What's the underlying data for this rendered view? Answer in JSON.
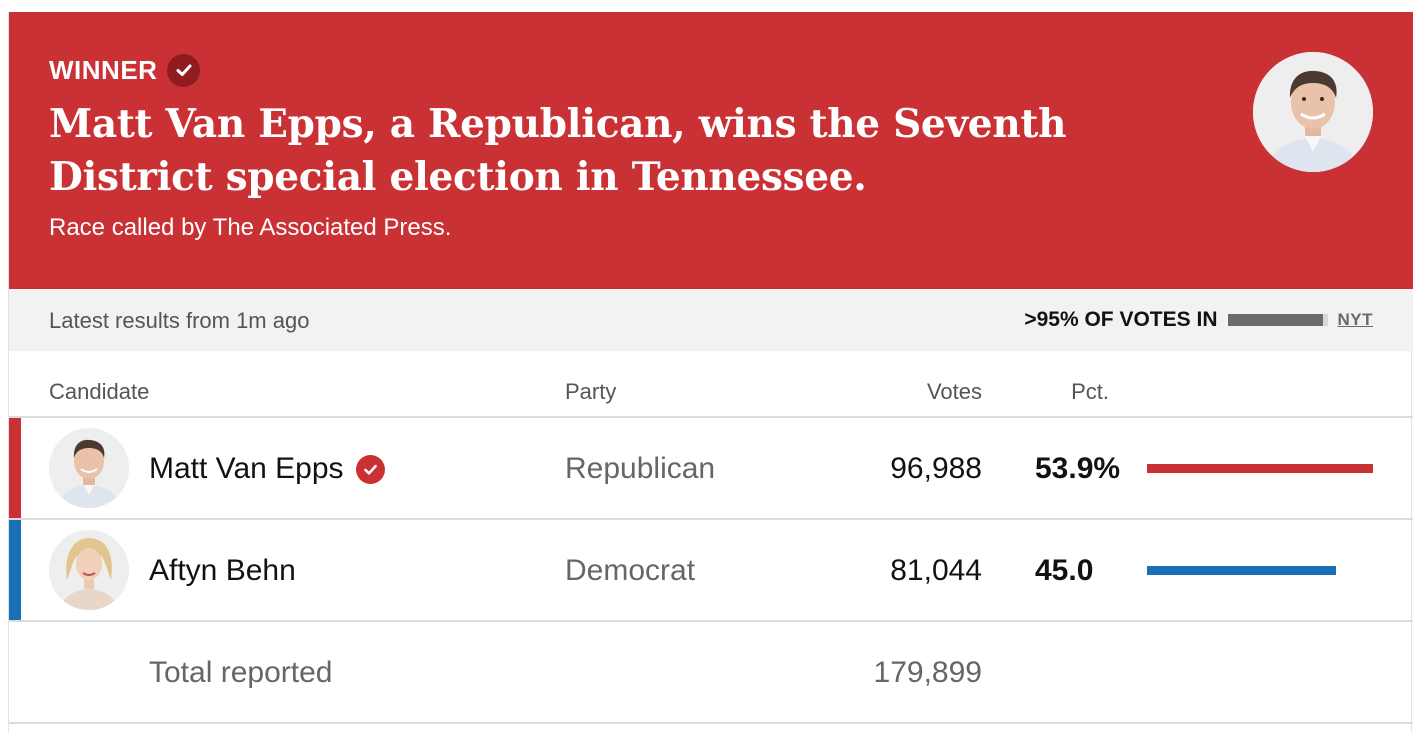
{
  "banner": {
    "winner_label": "WINNER",
    "headline": "Matt Van Epps, a Republican, wins the Seventh District special election in Tennessee.",
    "called_by": "Race called by The Associated Press.",
    "background_color": "#c93135",
    "photo_icon": "candidate-portrait"
  },
  "status": {
    "latest": "Latest results from 1m ago",
    "votes_in": ">95% OF VOTES IN",
    "votes_in_fraction": 0.95,
    "source_link": "NYT"
  },
  "table": {
    "headers": {
      "candidate": "Candidate",
      "party": "Party",
      "votes": "Votes",
      "pct": "Pct."
    },
    "rows": [
      {
        "name": "Matt Van Epps",
        "winner": true,
        "party": "Republican",
        "votes": "96,988",
        "pct": "53.9%",
        "pct_value": 53.9,
        "color": "#c93135"
      },
      {
        "name": "Aftyn Behn",
        "winner": false,
        "party": "Democrat",
        "votes": "81,044",
        "pct": "45.0",
        "pct_value": 45.0,
        "color": "#1a6fb9"
      }
    ],
    "total_label": "Total reported",
    "total_votes": "179,899"
  }
}
